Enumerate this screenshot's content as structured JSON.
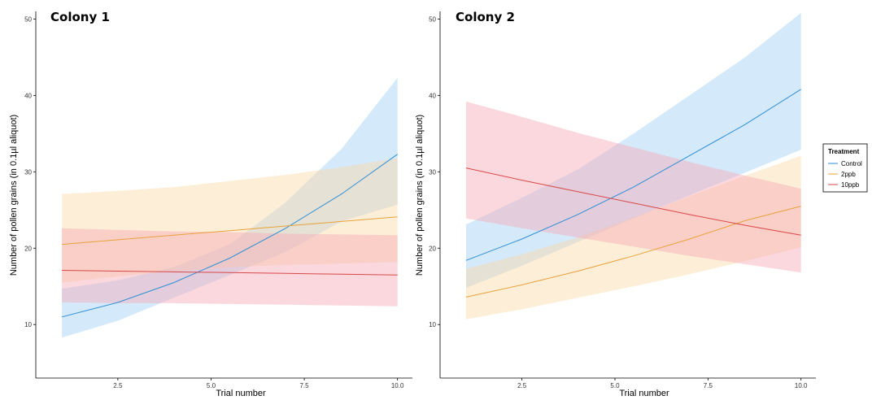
{
  "legend": {
    "title": "Treatment",
    "items": [
      {
        "label": "Control",
        "color": "#2e8fd6",
        "fill": "#9fcff5"
      },
      {
        "label": "2ppb",
        "color": "#e8a23a",
        "fill": "#fbd9a8"
      },
      {
        "label": "10ppb",
        "color": "#d94848",
        "fill": "#f7a9b6"
      }
    ]
  },
  "chart_data": [
    {
      "type": "line",
      "title": "Colony 1",
      "xlabel": "Trial number",
      "ylabel": "Number of pollen grains (in 0.1µl aliquot)",
      "xlim": [
        0.3,
        10.4
      ],
      "ylim": [
        3,
        51
      ],
      "x_ticks": [
        2.5,
        5.0,
        7.5,
        10.0
      ],
      "x_tick_labels": [
        "2.5",
        "5.0",
        "7.5",
        "10.0"
      ],
      "y_ticks": [
        10,
        20,
        30,
        40,
        50
      ],
      "y_tick_labels": [
        "10",
        "20",
        "30",
        "40",
        "50"
      ],
      "grid": false,
      "series": [
        {
          "name": "Control",
          "x": [
            1,
            2.5,
            4,
            5.5,
            7,
            8.5,
            10
          ],
          "y": [
            11,
            12.9,
            15.5,
            18.7,
            22.6,
            27.1,
            32.3
          ],
          "lower": [
            8.3,
            10.5,
            13.5,
            16.5,
            19.5,
            23.5,
            25.7
          ],
          "upper": [
            14.7,
            15.8,
            17.5,
            20.5,
            26,
            33,
            42.3
          ]
        },
        {
          "name": "2ppb",
          "x": [
            1,
            2.5,
            4,
            5.5,
            7,
            8.5,
            10
          ],
          "y": [
            20.5,
            21.1,
            21.7,
            22.3,
            22.9,
            23.5,
            24.1
          ],
          "lower": [
            15.5,
            16.3,
            17,
            17.5,
            17.8,
            18,
            18.2
          ],
          "upper": [
            27.1,
            27.5,
            28,
            28.8,
            29.6,
            30.6,
            31.8
          ]
        },
        {
          "name": "10ppb",
          "x": [
            1,
            2.5,
            4,
            5.5,
            7,
            8.5,
            10
          ],
          "y": [
            17.1,
            17,
            16.9,
            16.8,
            16.7,
            16.6,
            16.5
          ],
          "lower": [
            12.9,
            12.8,
            12.8,
            12.7,
            12.6,
            12.5,
            12.4
          ],
          "upper": [
            22.6,
            22.4,
            22.2,
            22.1,
            21.9,
            21.8,
            21.7
          ]
        }
      ]
    },
    {
      "type": "line",
      "title": "Colony 2",
      "xlabel": "Trial number",
      "ylabel": "Number of pollen grains (in 0.1µl aliquot)",
      "xlim": [
        0.3,
        10.4
      ],
      "ylim": [
        3,
        51
      ],
      "x_ticks": [
        2.5,
        5.0,
        7.5,
        10.0
      ],
      "x_tick_labels": [
        "2.5",
        "5.0",
        "7.5",
        "10.0"
      ],
      "y_ticks": [
        10,
        20,
        30,
        40,
        50
      ],
      "y_tick_labels": [
        "10",
        "20",
        "30",
        "40",
        "50"
      ],
      "grid": false,
      "series": [
        {
          "name": "Control",
          "x": [
            1,
            2.5,
            4,
            5.5,
            7,
            8.5,
            10
          ],
          "y": [
            18.4,
            21.2,
            24.4,
            28,
            32.1,
            36.2,
            40.8
          ],
          "lower": [
            14.8,
            17.7,
            20.8,
            23.9,
            26.9,
            29.9,
            32.9
          ],
          "upper": [
            23.1,
            26.6,
            30.3,
            35,
            40,
            45,
            50.8
          ]
        },
        {
          "name": "2ppb",
          "x": [
            1,
            2.5,
            4,
            5.5,
            7,
            8.5,
            10
          ],
          "y": [
            13.6,
            15.2,
            17,
            19,
            21.2,
            23.6,
            25.5
          ],
          "lower": [
            10.7,
            12,
            13.5,
            15,
            16.6,
            18.3,
            20.1
          ],
          "upper": [
            17.3,
            19.2,
            21.4,
            24,
            26.8,
            29.5,
            32.1
          ]
        },
        {
          "name": "10ppb",
          "x": [
            1,
            2.5,
            4,
            5.5,
            7,
            8.5,
            10
          ],
          "y": [
            30.5,
            28.9,
            27.4,
            25.9,
            24.4,
            23,
            21.7
          ],
          "lower": [
            23.9,
            22.6,
            21.4,
            20.2,
            19,
            17.9,
            16.8
          ],
          "upper": [
            39.2,
            37.2,
            35.1,
            33.2,
            31.3,
            29.5,
            27.8
          ]
        }
      ]
    }
  ]
}
